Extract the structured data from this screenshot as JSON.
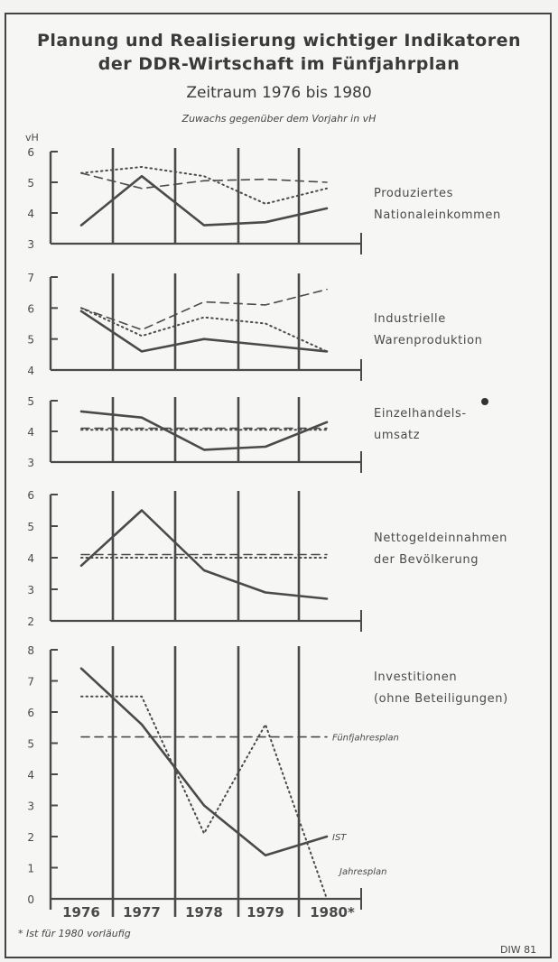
{
  "header": {
    "title_line1": "Planung und Realisierung wichtiger Indikatoren",
    "title_line2": "der DDR-Wirtschaft im Fünfjahrplan",
    "subtitle": "Zeitraum 1976 bis 1980",
    "note": "Zuwachs gegenüber dem Vorjahr in vH",
    "unit": "vH"
  },
  "footer": {
    "footnote": "* Ist für 1980 vorläufig",
    "source": "DIW 81"
  },
  "x_labels": [
    "1976",
    "1977",
    "1978",
    "1979",
    "1980*"
  ],
  "chart_data": [
    {
      "type": "line",
      "title": "Produziertes Nationaleinkommen",
      "x": [
        "1976",
        "1977",
        "1978",
        "1979",
        "1980"
      ],
      "ylim": [
        3,
        6
      ],
      "yticks": [
        3,
        4,
        5,
        6
      ],
      "series": [
        {
          "style": "solid",
          "values": [
            3.6,
            5.2,
            3.6,
            3.7,
            4.15
          ]
        },
        {
          "style": "dashed",
          "values": [
            5.3,
            4.8,
            5.05,
            5.1,
            5.0
          ]
        },
        {
          "style": "dotted",
          "values": [
            5.3,
            5.5,
            5.2,
            4.3,
            4.8
          ]
        }
      ]
    },
    {
      "type": "line",
      "title": "Industrielle Warenproduktion",
      "x": [
        "1976",
        "1977",
        "1978",
        "1979",
        "1980"
      ],
      "ylim": [
        4,
        7
      ],
      "yticks": [
        4,
        5,
        6,
        7
      ],
      "series": [
        {
          "style": "solid",
          "values": [
            5.9,
            4.6,
            5.0,
            4.8,
            4.6
          ]
        },
        {
          "style": "dashed",
          "values": [
            6.0,
            5.3,
            6.2,
            6.1,
            6.6
          ]
        },
        {
          "style": "dotted",
          "values": [
            6.0,
            5.1,
            5.7,
            5.5,
            4.6
          ]
        }
      ]
    },
    {
      "type": "line",
      "title": "Einzelhandelsumsatz",
      "x": [
        "1976",
        "1977",
        "1978",
        "1979",
        "1980"
      ],
      "ylim": [
        3,
        5
      ],
      "yticks": [
        3,
        4,
        5
      ],
      "series": [
        {
          "style": "solid",
          "values": [
            4.65,
            4.45,
            3.4,
            3.5,
            4.3
          ]
        },
        {
          "style": "dashed",
          "values": [
            4.1,
            4.1,
            4.1,
            4.1,
            4.1
          ]
        },
        {
          "style": "dotted",
          "values": [
            4.05,
            4.05,
            4.05,
            4.05,
            4.05
          ]
        }
      ]
    },
    {
      "type": "line",
      "title": "Nettogeldeinnahmen der Bevölkerung",
      "x": [
        "1976",
        "1977",
        "1978",
        "1979",
        "1980"
      ],
      "ylim": [
        2,
        6
      ],
      "yticks": [
        2,
        3,
        4,
        5,
        6
      ],
      "series": [
        {
          "style": "solid",
          "values": [
            3.75,
            5.5,
            3.6,
            2.9,
            2.7
          ]
        },
        {
          "style": "dashed",
          "values": [
            4.1,
            4.1,
            4.1,
            4.1,
            4.1
          ]
        },
        {
          "style": "dotted",
          "values": [
            4.0,
            4.0,
            4.0,
            4.0,
            4.0
          ]
        }
      ]
    },
    {
      "type": "line",
      "title": "Investitionen (ohne Beteiligungen)",
      "x": [
        "1976",
        "1977",
        "1978",
        "1979",
        "1980"
      ],
      "ylim": [
        0,
        8
      ],
      "yticks": [
        0,
        1,
        2,
        3,
        4,
        5,
        6,
        7,
        8
      ],
      "series": [
        {
          "name": "IST",
          "style": "solid",
          "values": [
            7.4,
            5.6,
            3.0,
            1.4,
            2.0
          ]
        },
        {
          "name": "Fünfjahresplan",
          "style": "dashed",
          "values": [
            5.2,
            5.2,
            5.2,
            5.2,
            5.2
          ]
        },
        {
          "name": "Jahresplan",
          "style": "dotted",
          "values": [
            6.5,
            6.5,
            2.1,
            5.6,
            0.0
          ]
        }
      ]
    }
  ]
}
